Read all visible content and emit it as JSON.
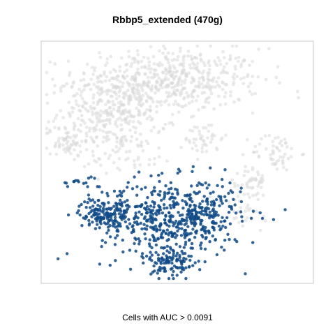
{
  "chart_data": {
    "type": "scatter",
    "title": "Rbbp5_extended (470g)",
    "subtitle": "Cells with AUC > 0.0091",
    "xlabel": "",
    "ylabel": "",
    "axes_visible": false,
    "grid": false,
    "colors": {
      "cells_below_threshold": "#d9d9d9",
      "cells_above_threshold": "#0f4a87",
      "panel_border": "#c8c8c8"
    },
    "series": [
      {
        "role": "cells_below_threshold",
        "clusters": [
          {
            "cx": 0.47,
            "cy": 0.84,
            "sx": 0.17,
            "sy": 0.065,
            "n": 520
          },
          {
            "cx": 0.26,
            "cy": 0.7,
            "sx": 0.1,
            "sy": 0.07,
            "n": 300
          },
          {
            "cx": 0.09,
            "cy": 0.59,
            "sx": 0.035,
            "sy": 0.03,
            "n": 55
          },
          {
            "cx": 0.6,
            "cy": 0.6,
            "sx": 0.035,
            "sy": 0.04,
            "n": 45
          },
          {
            "cx": 0.86,
            "cy": 0.54,
            "sx": 0.045,
            "sy": 0.04,
            "n": 55
          },
          {
            "cx": 0.78,
            "cy": 0.42,
            "sx": 0.025,
            "sy": 0.03,
            "n": 40
          },
          {
            "cx": 0.74,
            "cy": 0.3,
            "sx": 0.06,
            "sy": 0.05,
            "n": 35
          },
          {
            "cx": 0.3,
            "cy": 0.54,
            "sx": 0.1,
            "sy": 0.04,
            "n": 60
          }
        ]
      },
      {
        "role": "cells_above_threshold",
        "clusters": [
          {
            "cx": 0.48,
            "cy": 0.27,
            "sx": 0.13,
            "sy": 0.08,
            "n": 560
          },
          {
            "cx": 0.22,
            "cy": 0.29,
            "sx": 0.04,
            "sy": 0.03,
            "n": 120
          },
          {
            "cx": 0.15,
            "cy": 0.42,
            "sx": 0.04,
            "sy": 0.012,
            "n": 15
          },
          {
            "cx": 0.29,
            "cy": 0.35,
            "sx": 0.012,
            "sy": 0.012,
            "n": 8
          },
          {
            "cx": 0.48,
            "cy": 0.08,
            "sx": 0.04,
            "sy": 0.04,
            "n": 90
          },
          {
            "cx": 0.62,
            "cy": 0.3,
            "sx": 0.03,
            "sy": 0.04,
            "n": 40
          }
        ]
      }
    ]
  }
}
